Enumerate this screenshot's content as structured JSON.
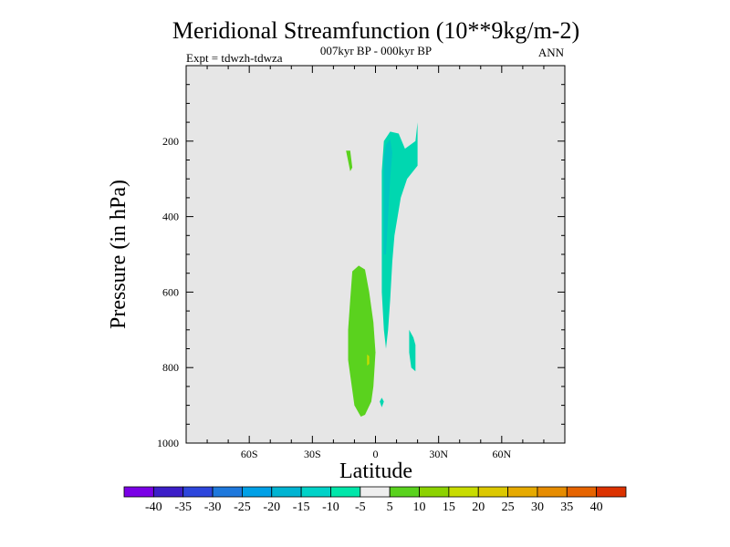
{
  "chart_data": {
    "type": "contour",
    "title": "Meridional Streamfunction (10**9kg/m-2)",
    "subtitle": "007kyr BP - 000kyr BP",
    "experiment_label": "Expt = tdwzh-tdwza",
    "season_label": "ANN",
    "xlabel": "Latitude",
    "ylabel": "Pressure (in hPa)",
    "xlim": [
      -90,
      90
    ],
    "ylim": [
      1000,
      0
    ],
    "y_reversed": true,
    "background_color": "#e6e6e6",
    "x_ticks": [
      {
        "value": -60,
        "label": "60S"
      },
      {
        "value": -30,
        "label": "30S"
      },
      {
        "value": 0,
        "label": "0"
      },
      {
        "value": 30,
        "label": "30N"
      },
      {
        "value": 60,
        "label": "60N"
      }
    ],
    "y_ticks": [
      {
        "value": 200,
        "label": "200"
      },
      {
        "value": 400,
        "label": "400"
      },
      {
        "value": 600,
        "label": "600"
      },
      {
        "value": 800,
        "label": "800"
      },
      {
        "value": 1000,
        "label": "1000"
      }
    ],
    "colorbar": {
      "labels": [
        "-40",
        "-35",
        "-30",
        "-25",
        "-20",
        "-15",
        "-10",
        "-5",
        "5",
        "10",
        "15",
        "20",
        "25",
        "30",
        "35",
        "40"
      ],
      "colors": [
        "#7a00e6",
        "#3c1ec8",
        "#2d46dc",
        "#1e78dc",
        "#00a0e6",
        "#00b4d2",
        "#00d2c8",
        "#00e6aa",
        "#eeeeee",
        "#5ad21e",
        "#8cd200",
        "#c8dc00",
        "#dcc800",
        "#e6aa00",
        "#e68c00",
        "#e66400",
        "#dc3200"
      ]
    },
    "regions": [
      {
        "name": "negative-upper-cell",
        "level": "-10",
        "color": "#00d7b0",
        "points": [
          [
            3,
            280
          ],
          [
            4,
            200
          ],
          [
            7,
            175
          ],
          [
            11,
            180
          ],
          [
            14,
            220
          ],
          [
            19,
            200
          ],
          [
            20,
            150
          ],
          [
            20,
            265
          ],
          [
            15,
            300
          ],
          [
            12,
            350
          ],
          [
            9,
            450
          ],
          [
            8,
            520
          ],
          [
            7,
            620
          ],
          [
            6,
            700
          ],
          [
            5,
            750
          ],
          [
            4,
            700
          ],
          [
            3,
            600
          ],
          [
            3,
            450
          ]
        ]
      },
      {
        "name": "negative-inner-core",
        "level": "-15",
        "color": "#00c6c0",
        "points": [
          [
            4,
            240
          ],
          [
            5,
            210
          ],
          [
            7,
            195
          ],
          [
            8,
            230
          ],
          [
            7,
            300
          ],
          [
            6,
            400
          ],
          [
            5,
            500
          ],
          [
            4,
            500
          ],
          [
            4,
            380
          ]
        ]
      },
      {
        "name": "negative-lower-blob",
        "level": "-10",
        "color": "#00d7b0",
        "points": [
          [
            16,
            700
          ],
          [
            18,
            720
          ],
          [
            19,
            740
          ],
          [
            19,
            810
          ],
          [
            17,
            800
          ],
          [
            16,
            760
          ]
        ]
      },
      {
        "name": "negative-small-blob",
        "level": "-10",
        "color": "#00d7b0",
        "points": [
          [
            3,
            880
          ],
          [
            4,
            890
          ],
          [
            3,
            905
          ],
          [
            2,
            890
          ]
        ]
      },
      {
        "name": "positive-upper-patch",
        "level": "5",
        "color": "#5ad21e",
        "points": [
          [
            -14,
            225
          ],
          [
            -12,
            225
          ],
          [
            -11,
            270
          ],
          [
            -12,
            280
          ]
        ]
      },
      {
        "name": "positive-lower-cell",
        "level": "5",
        "color": "#5ad21e",
        "points": [
          [
            -11,
            545
          ],
          [
            -8,
            530
          ],
          [
            -5,
            540
          ],
          [
            -3,
            600
          ],
          [
            -1,
            680
          ],
          [
            0,
            760
          ],
          [
            -1,
            850
          ],
          [
            -2,
            890
          ],
          [
            -5,
            925
          ],
          [
            -7,
            930
          ],
          [
            -10,
            900
          ],
          [
            -12,
            820
          ],
          [
            -13,
            780
          ],
          [
            -13,
            700
          ],
          [
            -12,
            620
          ]
        ]
      },
      {
        "name": "positive-core-dot",
        "level": "10",
        "color": "#c8dc00",
        "points": [
          [
            -4,
            765
          ],
          [
            -3,
            770
          ],
          [
            -3,
            790
          ],
          [
            -4,
            795
          ]
        ]
      }
    ]
  }
}
